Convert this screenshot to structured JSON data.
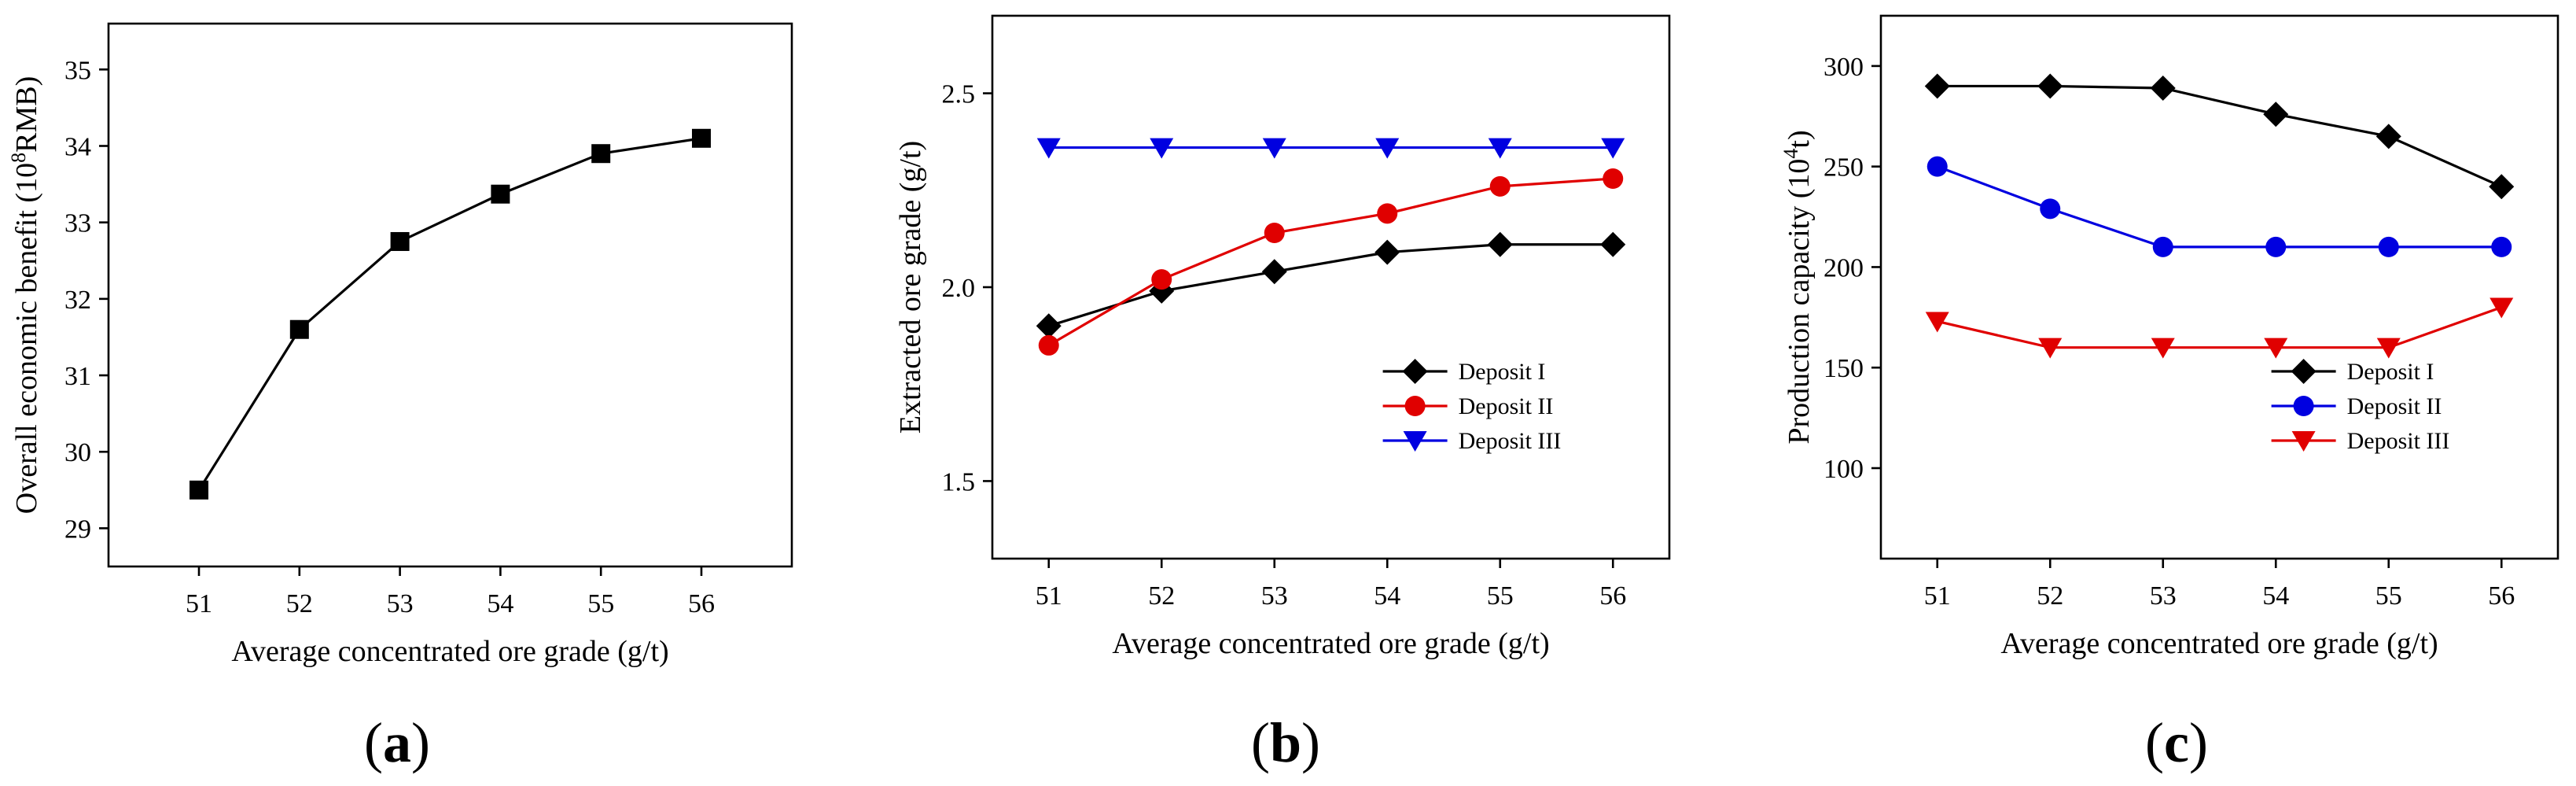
{
  "chart_data": [
    {
      "type": "line",
      "panel_label": "a",
      "title": "",
      "xlabel": "Average concentrated ore grade (g/t)",
      "ylabel_parts": {
        "before": "Overall economic benefit (10",
        "sup": "8",
        "after": "RMB)"
      },
      "x": [
        51,
        52,
        53,
        54,
        55,
        56
      ],
      "xlim": [
        50.1,
        56.9
      ],
      "ylim": [
        28.5,
        35.6
      ],
      "yticks": [
        29,
        30,
        31,
        32,
        33,
        34,
        35
      ],
      "legend": "none",
      "series": [
        {
          "name": "",
          "color": "#000000",
          "marker": "square",
          "values": [
            29.5,
            31.6,
            32.75,
            33.37,
            33.9,
            34.1
          ]
        }
      ]
    },
    {
      "type": "line",
      "panel_label": "b",
      "title": "",
      "xlabel": "Average concentrated ore grade (g/t)",
      "ylabel_parts": {
        "before": "Extracted ore grade (g/t)",
        "sup": "",
        "after": ""
      },
      "x": [
        51,
        52,
        53,
        54,
        55,
        56
      ],
      "xlim": [
        50.5,
        56.5
      ],
      "ylim": [
        1.3,
        2.7
      ],
      "yticks": [
        "1.5",
        "2.0",
        "2.5"
      ],
      "legend": "lower-right",
      "series": [
        {
          "name": "Deposit I",
          "color": "#000000",
          "marker": "diamond",
          "values": [
            1.9,
            1.99,
            2.04,
            2.09,
            2.11,
            2.11
          ]
        },
        {
          "name": "Deposit II",
          "color": "#e00000",
          "marker": "circle",
          "values": [
            1.85,
            2.02,
            2.14,
            2.19,
            2.26,
            2.28
          ]
        },
        {
          "name": "Deposit III",
          "color": "#0000e0",
          "marker": "triangle-down",
          "values": [
            2.36,
            2.36,
            2.36,
            2.36,
            2.36,
            2.36
          ]
        }
      ]
    },
    {
      "type": "line",
      "panel_label": "c",
      "title": "",
      "xlabel": "Average concentrated ore grade (g/t)",
      "ylabel_parts": {
        "before": "Production capacity (10",
        "sup": "4",
        "after": "t)"
      },
      "x": [
        51,
        52,
        53,
        54,
        55,
        56
      ],
      "xlim": [
        50.5,
        56.5
      ],
      "ylim": [
        55,
        325
      ],
      "yticks": [
        100,
        150,
        200,
        250,
        300
      ],
      "legend": "lower-right",
      "series": [
        {
          "name": "Deposit I",
          "color": "#000000",
          "marker": "diamond",
          "values": [
            290,
            290,
            289,
            276,
            265,
            240
          ]
        },
        {
          "name": "Deposit II",
          "color": "#0000e0",
          "marker": "circle",
          "values": [
            250,
            229,
            210,
            210,
            210,
            210
          ]
        },
        {
          "name": "Deposit III",
          "color": "#e00000",
          "marker": "triangle-down",
          "values": [
            173,
            160,
            160,
            160,
            160,
            180
          ]
        }
      ]
    }
  ]
}
